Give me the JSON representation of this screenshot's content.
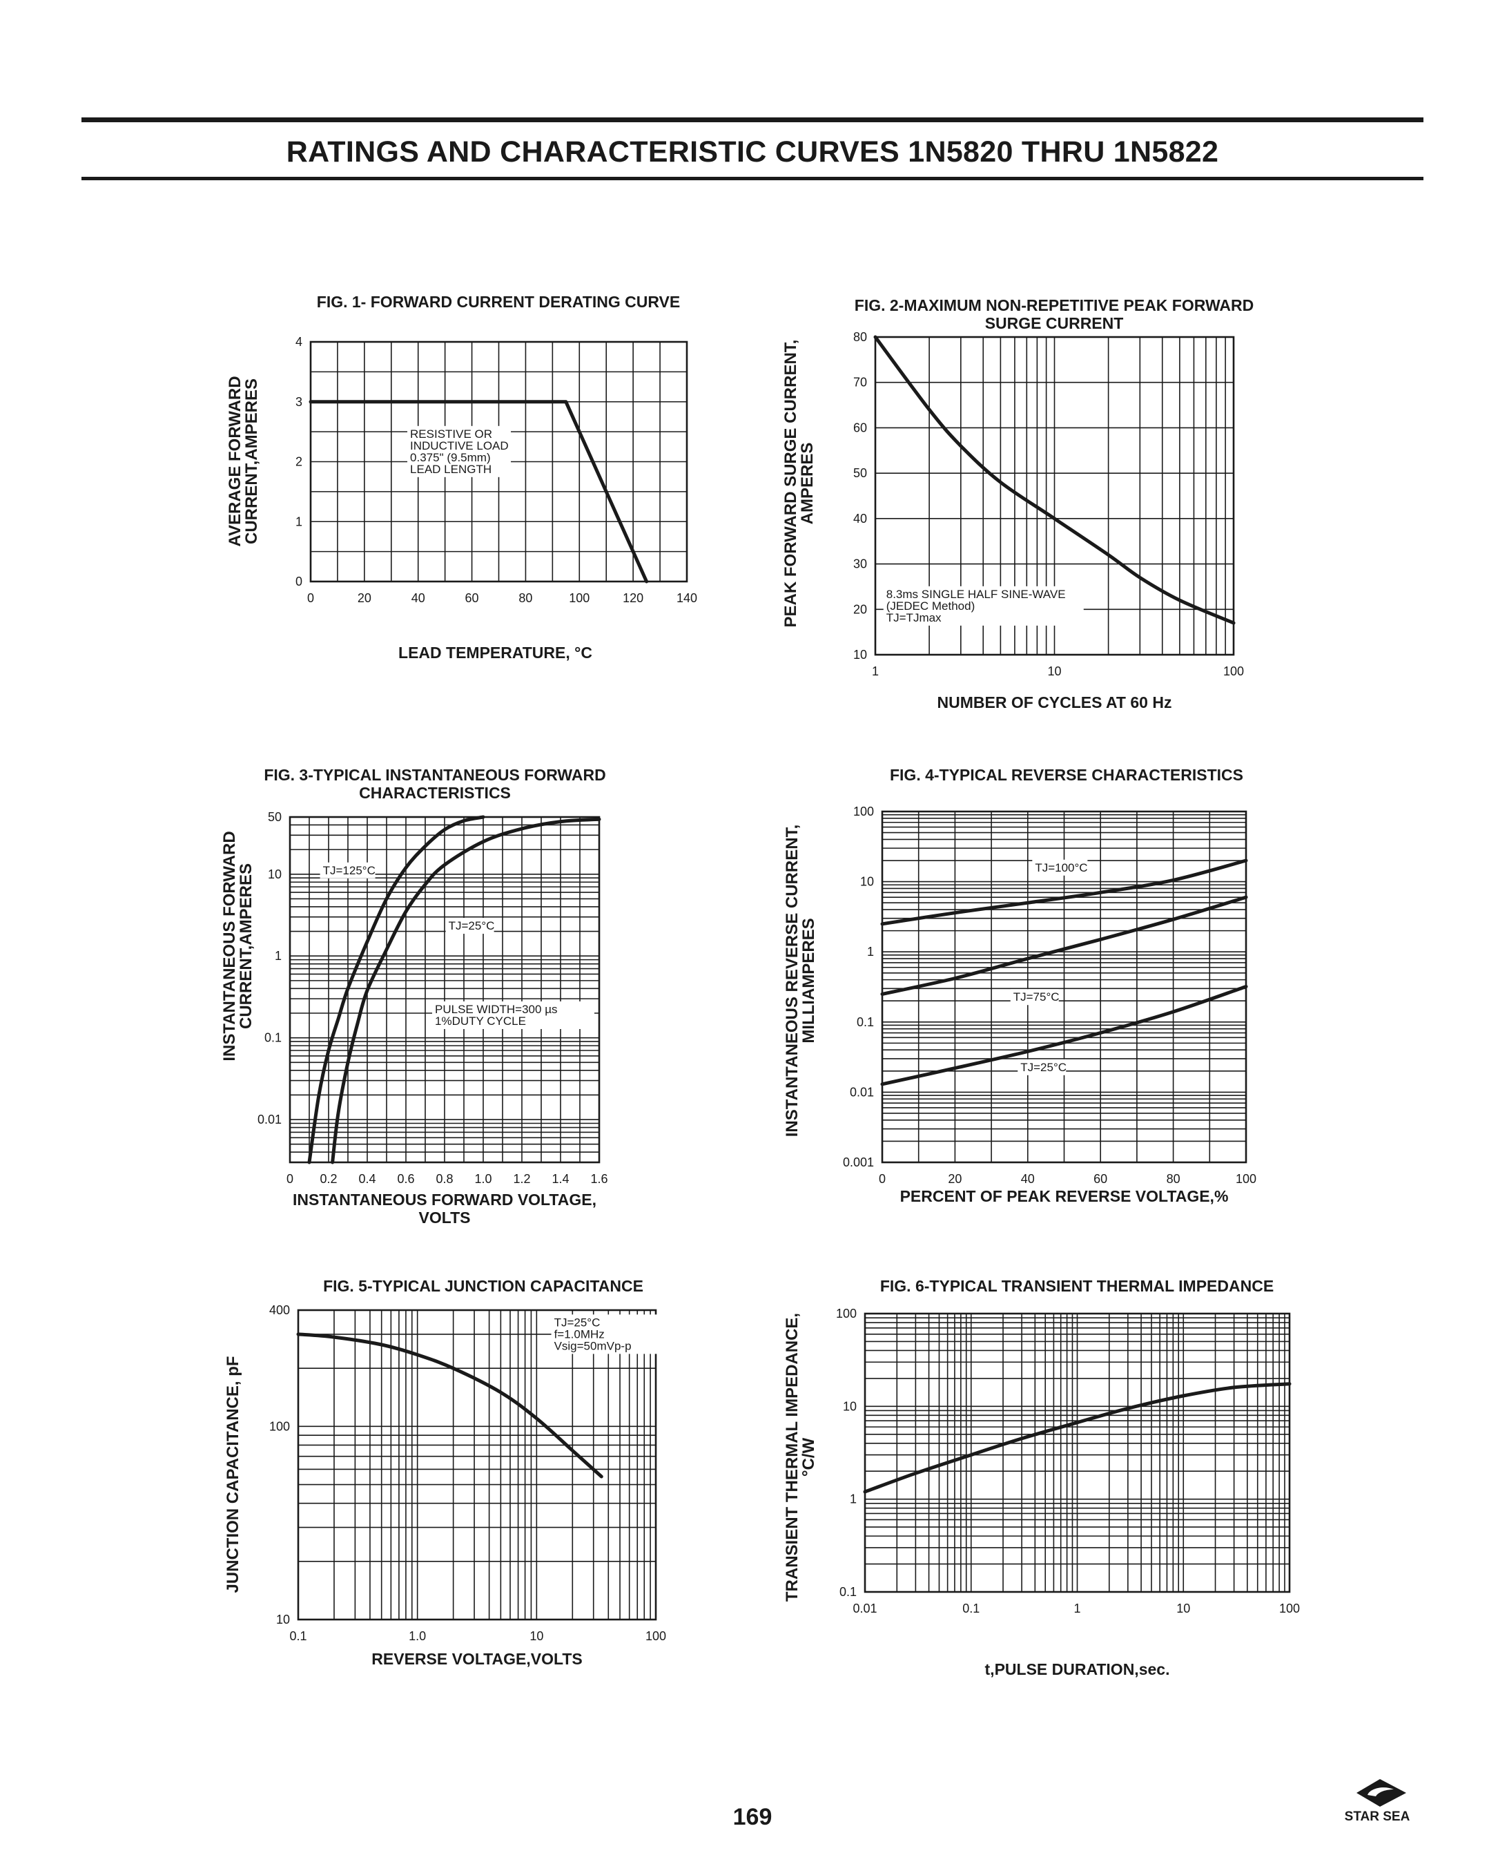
{
  "header": {
    "title": "RATINGS AND CHARACTERISTIC CURVES 1N5820 THRU 1N5822"
  },
  "footer": {
    "page_number": "169",
    "brand": "STAR SEA"
  },
  "colors": {
    "ink": "#1a1a1a",
    "paper": "#ffffff"
  },
  "chart_data": [
    {
      "id": "fig1",
      "type": "line",
      "title": [
        "FIG. 1- FORWARD CURRENT DERATING CURVE"
      ],
      "xlabel": [
        "LEAD TEMPERATURE, °C"
      ],
      "ylabel": [
        "AVERAGE FORWARD",
        "CURRENT,AMPERES"
      ],
      "xscale": "linear",
      "yscale": "linear",
      "xlim": [
        0,
        140
      ],
      "ylim": [
        0,
        4
      ],
      "xticks": [
        0,
        20,
        40,
        60,
        80,
        100,
        120,
        140
      ],
      "yticks": [
        0,
        1,
        2,
        3,
        4
      ],
      "xtick_labels": [
        "0",
        "20",
        "40",
        "60",
        "80",
        "100",
        "120",
        "140"
      ],
      "ytick_labels": [
        "0",
        "1",
        "2",
        "3",
        "4"
      ],
      "grid": true,
      "annotations": [
        {
          "text": [
            "RESISTIVE OR",
            "INDUCTIVE LOAD",
            "0.375\"   (9.5mm)",
            "LEAD LENGTH"
          ],
          "x": 37,
          "y": 2.4
        }
      ],
      "series": [
        {
          "name": "derating",
          "x": [
            0,
            95,
            125
          ],
          "y": [
            3,
            3,
            0
          ]
        }
      ]
    },
    {
      "id": "fig2",
      "type": "line",
      "title": [
        "FIG. 2-MAXIMUM NON-REPETITIVE PEAK FORWARD",
        "SURGE CURRENT"
      ],
      "xlabel": [
        "NUMBER OF CYCLES AT 60 Hz"
      ],
      "ylabel": [
        "PEAK  FORWARD SURGE CURRENT,",
        "AMPERES"
      ],
      "xscale": "log",
      "yscale": "linear",
      "xlim": [
        1,
        100
      ],
      "ylim": [
        10,
        80
      ],
      "xticks": [
        1,
        10,
        100
      ],
      "yticks": [
        10,
        20,
        30,
        40,
        50,
        60,
        70,
        80
      ],
      "xtick_labels": [
        "1",
        "10",
        "100"
      ],
      "ytick_labels": [
        "10",
        "20",
        "30",
        "40",
        "50",
        "60",
        "70",
        "80"
      ],
      "grid": true,
      "annotations": [
        {
          "text": [
            "8.3ms SINGLE HALF SINE-WAVE",
            "(JEDEC Method)",
            "TJ=TJmax"
          ],
          "x": 1.15,
          "y": 22.5
        }
      ],
      "series": [
        {
          "name": "surge",
          "x": [
            1,
            2,
            3,
            5,
            10,
            20,
            30,
            50,
            100
          ],
          "y": [
            80,
            64,
            56,
            48,
            40,
            32,
            27,
            22,
            17
          ]
        }
      ]
    },
    {
      "id": "fig3",
      "type": "line",
      "title": [
        "FIG. 3-TYPICAL INSTANTANEOUS FORWARD",
        "CHARACTERISTICS"
      ],
      "xlabel": [
        "INSTANTANEOUS FORWARD VOLTAGE,",
        "VOLTS"
      ],
      "ylabel": [
        "INSTANTANEOUS FORWARD",
        "CURRENT,AMPERES"
      ],
      "xscale": "linear",
      "yscale": "log",
      "xlim": [
        0,
        1.6
      ],
      "ylim": [
        0.003,
        50
      ],
      "xticks": [
        0,
        0.2,
        0.4,
        0.6,
        0.8,
        1.0,
        1.2,
        1.4,
        1.6
      ],
      "yticks": [
        0.01,
        0.1,
        1,
        10,
        50
      ],
      "xtick_labels": [
        "0",
        "0.2",
        "0.4",
        "0.6",
        "0.8",
        "1.0",
        "1.2",
        "1.4",
        "1.6"
      ],
      "ytick_labels": [
        "0.01",
        "0.1",
        "1",
        "10",
        "50"
      ],
      "grid": true,
      "annotations": [
        {
          "text": [
            "TJ=125°C"
          ],
          "x": 0.17,
          "y": 10
        },
        {
          "text": [
            "TJ=25°C"
          ],
          "x": 0.82,
          "y": 2.1
        },
        {
          "text": [
            "PULSE WIDTH=300 µs",
            "1%DUTY CYCLE"
          ],
          "x": 0.75,
          "y": 0.2
        }
      ],
      "series": [
        {
          "name": "TJ=125°C",
          "x": [
            0.1,
            0.15,
            0.2,
            0.25,
            0.3,
            0.4,
            0.5,
            0.6,
            0.7,
            0.8,
            0.9,
            1.0
          ],
          "y": [
            0.003,
            0.02,
            0.07,
            0.17,
            0.4,
            1.5,
            5,
            12,
            22,
            35,
            45,
            50
          ]
        },
        {
          "name": "TJ=25°C",
          "x": [
            0.22,
            0.25,
            0.3,
            0.35,
            0.4,
            0.5,
            0.6,
            0.7,
            0.8,
            1.0,
            1.2,
            1.4,
            1.6
          ],
          "y": [
            0.003,
            0.012,
            0.05,
            0.15,
            0.38,
            1.2,
            3.5,
            7.5,
            13,
            25,
            36,
            44,
            47
          ]
        }
      ]
    },
    {
      "id": "fig4",
      "type": "line",
      "title": [
        "FIG. 4-TYPICAL REVERSE CHARACTERISTICS"
      ],
      "xlabel": [
        "PERCENT OF PEAK REVERSE VOLTAGE,%"
      ],
      "ylabel": [
        "INSTANTANEOUS REVERSE CURRENT,",
        "MILLIAMPERES"
      ],
      "xscale": "linear",
      "yscale": "log",
      "xlim": [
        0,
        100
      ],
      "ylim": [
        0.001,
        100
      ],
      "xticks": [
        0,
        20,
        40,
        60,
        80,
        100
      ],
      "yticks": [
        0.001,
        0.01,
        0.1,
        1,
        10,
        100
      ],
      "xtick_labels": [
        "0",
        "20",
        "40",
        "60",
        "80",
        "100"
      ],
      "ytick_labels": [
        "0.001",
        "0.01",
        "0.1",
        "1",
        "10",
        "100"
      ],
      "grid": true,
      "annotations": [
        {
          "text": [
            "TJ=100°C"
          ],
          "x": 42,
          "y": 14
        },
        {
          "text": [
            "TJ=75°C"
          ],
          "x": 36,
          "y": 0.2
        },
        {
          "text": [
            "TJ=25°C"
          ],
          "x": 38,
          "y": 0.02
        }
      ],
      "series": [
        {
          "name": "TJ=100°C",
          "x": [
            0,
            20,
            40,
            60,
            80,
            100
          ],
          "y": [
            2.5,
            3.6,
            5,
            7,
            10.5,
            20
          ]
        },
        {
          "name": "TJ=75°C",
          "x": [
            0,
            20,
            40,
            60,
            80,
            100
          ],
          "y": [
            0.25,
            0.42,
            0.8,
            1.5,
            2.9,
            6
          ]
        },
        {
          "name": "TJ=25°C",
          "x": [
            0,
            20,
            40,
            60,
            80,
            100
          ],
          "y": [
            0.013,
            0.022,
            0.038,
            0.07,
            0.14,
            0.32
          ]
        }
      ]
    },
    {
      "id": "fig5",
      "type": "line",
      "title": [
        "FIG. 5-TYPICAL JUNCTION CAPACITANCE"
      ],
      "xlabel": [
        "REVERSE VOLTAGE,VOLTS"
      ],
      "ylabel": [
        "JUNCTION CAPACITANCE, pF"
      ],
      "xscale": "log",
      "yscale": "log",
      "xlim": [
        0.1,
        100
      ],
      "ylim": [
        10,
        400
      ],
      "xticks": [
        0.1,
        1,
        10,
        100
      ],
      "yticks": [
        10,
        100,
        400
      ],
      "xtick_labels": [
        "0.1",
        "1.0",
        "10",
        "100"
      ],
      "ytick_labels": [
        "10",
        "100",
        "400"
      ],
      "grid": true,
      "annotations": [
        {
          "text": [
            "TJ=25°C",
            "f=1.0MHz",
            "Vsig=50mVp-p"
          ],
          "x": 14,
          "y": 330
        }
      ],
      "series": [
        {
          "name": "capacitance",
          "x": [
            0.1,
            0.2,
            0.5,
            1,
            2,
            5,
            10,
            20,
            35
          ],
          "y": [
            300,
            290,
            265,
            235,
            200,
            150,
            110,
            75,
            55
          ]
        }
      ]
    },
    {
      "id": "fig6",
      "type": "line",
      "title": [
        "FIG. 6-TYPICAL TRANSIENT THERMAL IMPEDANCE"
      ],
      "xlabel": [
        "t,PULSE DURATION,sec."
      ],
      "ylabel": [
        "TRANSIENT THERMAL IMPEDANCE,",
        "°C/W"
      ],
      "xscale": "log",
      "yscale": "log",
      "xlim": [
        0.01,
        100
      ],
      "ylim": [
        0.1,
        100
      ],
      "xticks": [
        0.01,
        0.1,
        1,
        10,
        100
      ],
      "yticks": [
        0.1,
        1,
        10,
        100
      ],
      "xtick_labels": [
        "0.01",
        "0.1",
        "1",
        "10",
        "100"
      ],
      "ytick_labels": [
        "0.1",
        "1",
        "10",
        "100"
      ],
      "grid": true,
      "annotations": [],
      "series": [
        {
          "name": "impedance",
          "x": [
            0.01,
            0.03,
            0.1,
            0.3,
            1,
            3,
            10,
            30,
            100
          ],
          "y": [
            1.2,
            1.9,
            3.0,
            4.5,
            6.7,
            9.5,
            13,
            16,
            17.5
          ]
        }
      ]
    }
  ]
}
